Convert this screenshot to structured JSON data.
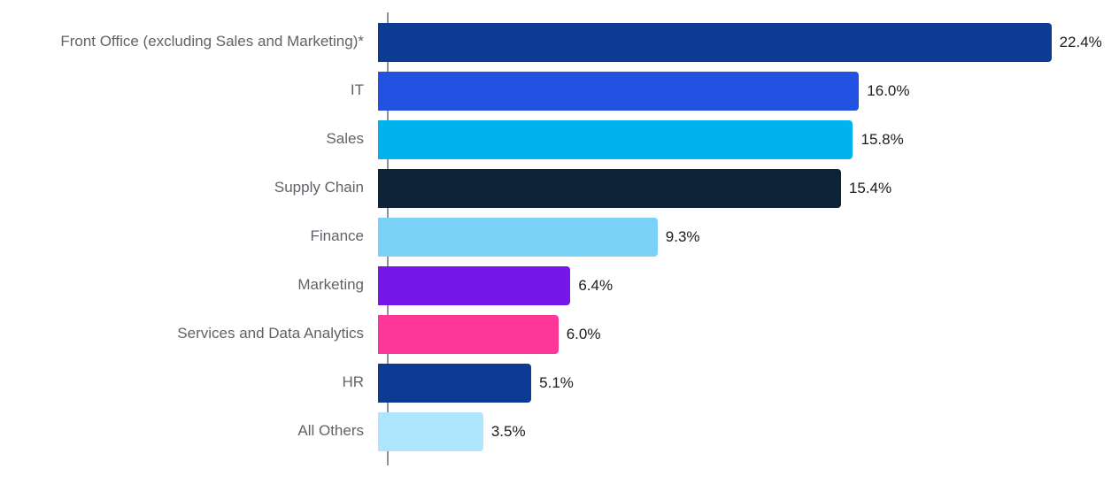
{
  "chart_data": {
    "type": "bar",
    "orientation": "horizontal",
    "title": "",
    "xlabel": "",
    "ylabel": "",
    "grid": false,
    "legend": "none",
    "xlim": [
      0,
      24.65
    ],
    "data_label_position": "outside-end",
    "categories": [
      "Front Office (excluding Sales and Marketing)*",
      "IT",
      "Sales",
      "Supply Chain",
      "Finance",
      "Marketing",
      "Services and Data Analytics",
      "HR",
      "All Others"
    ],
    "values": [
      22.4,
      16.0,
      15.8,
      15.4,
      9.3,
      6.4,
      6.0,
      5.1,
      3.5
    ],
    "value_labels": [
      "22.4%",
      "16.0%",
      "15.8%",
      "15.4%",
      "9.3%",
      "6.4%",
      "6.0%",
      "5.1%",
      "3.5%"
    ],
    "bar_colors": [
      "#0d3a93",
      "#2352e2",
      "#00b3ef",
      "#0e2338",
      "#7bd2f9",
      "#7517e8",
      "#fc3797",
      "#0d3a93",
      "#aee5fd"
    ],
    "colors": {
      "axis_line": "#8d939c",
      "category_label": "#5f6368",
      "value_label": "#1b1b1b",
      "background": "#ffffff"
    }
  }
}
